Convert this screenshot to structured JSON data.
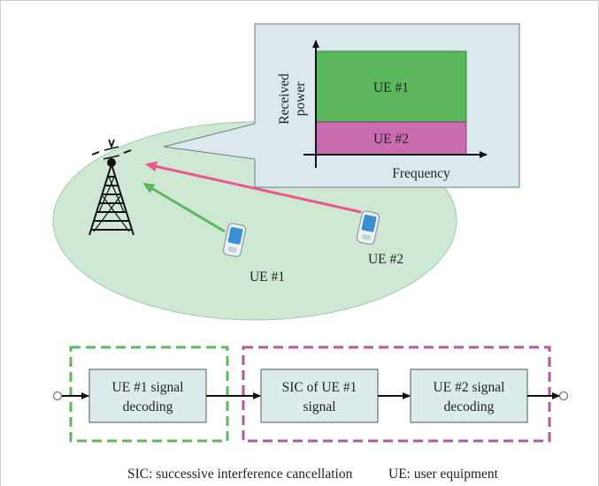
{
  "cell": {
    "ue1_label": "UE #1",
    "ue2_label": "UE #2"
  },
  "callout_chart": {
    "ylabel_line1": "Received",
    "ylabel_line2": "power",
    "xlabel": "Frequency",
    "bands": [
      {
        "label": "UE #1",
        "color": "#5cb85c"
      },
      {
        "label": "UE #2",
        "color": "#c86bb0"
      }
    ]
  },
  "pipeline": {
    "blocks": [
      {
        "line1": "UE #1 signal",
        "line2": "decoding"
      },
      {
        "line1": "SIC of UE #1",
        "line2": "signal"
      },
      {
        "line1": "UE #2 signal",
        "line2": "decoding"
      }
    ]
  },
  "legend": {
    "sic": "SIC: successive interference cancellation",
    "ue": "UE: user equipment"
  },
  "colors": {
    "cell_fill": "#cfe8d4",
    "callout_fill": "#dbe9ef",
    "ue1_arrow": "#5cb85c",
    "ue2_arrow": "#e8588e",
    "group1_border": "#5cb85c",
    "group2_border": "#b8569f",
    "block_fill": "#dcecec"
  }
}
